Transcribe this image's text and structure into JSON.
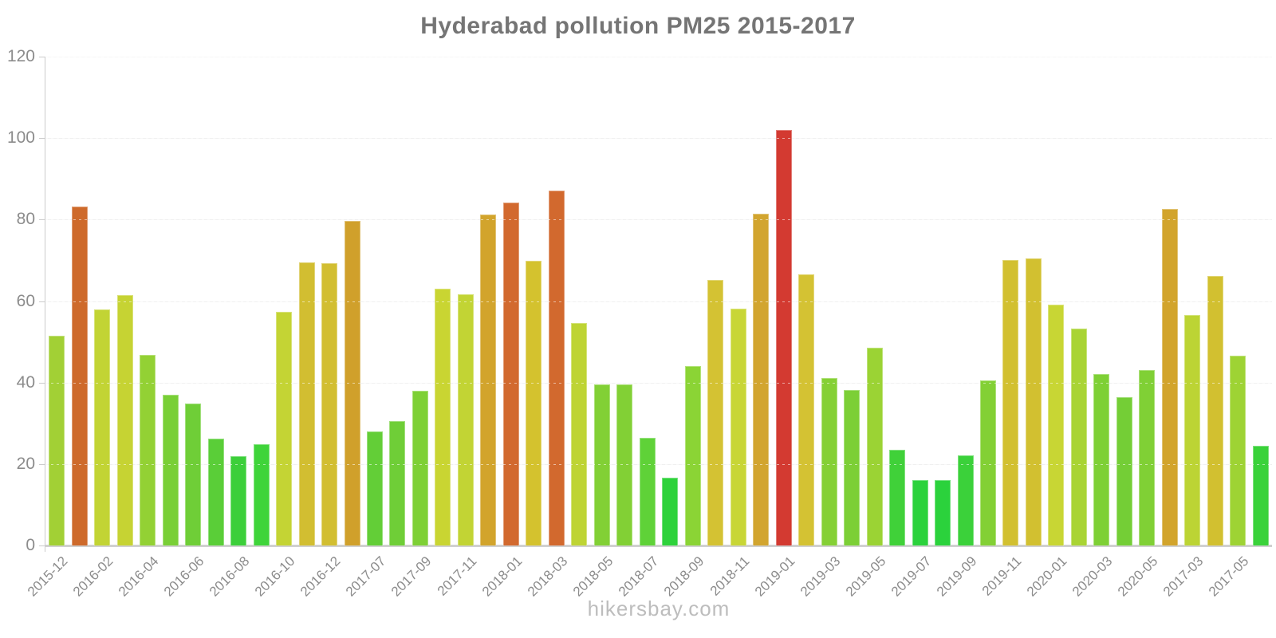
{
  "header": {
    "title": "Hyderabad pollution PM25 2015-2017"
  },
  "footer": {
    "watermark": "hikersbay.com"
  },
  "theme": {
    "background": "#ffffff",
    "title_color": "#757575",
    "tick_label_color": "#8c8c8c",
    "axis_color": "#cccccc",
    "grid_color": "#f0f0f0",
    "watermark_color": "#bdbdbd"
  },
  "chart_data": {
    "type": "bar",
    "title": "Hyderabad pollution PM25 2015-2017",
    "xlabel": "",
    "ylabel": "",
    "ylim": [
      0,
      120
    ],
    "y_ticks": [
      0,
      20,
      40,
      60,
      80,
      100,
      120
    ],
    "grid": true,
    "legend": "none",
    "x_label_interval": 2,
    "x_tick_labels": [
      "2015-12",
      "2016-02",
      "2016-04",
      "2016-06",
      "2016-08",
      "2016-10",
      "2016-12",
      "2017-07",
      "2017-09",
      "2017-11",
      "2018-01",
      "2018-03",
      "2018-05",
      "2018-07",
      "2018-09",
      "2018-11",
      "2019-01",
      "2019-03",
      "2019-05",
      "2019-07",
      "2019-09",
      "2019-11",
      "2020-01",
      "2020-03",
      "2020-05",
      "2017-03",
      "2017-05"
    ],
    "bars": [
      {
        "value": 51.5,
        "color": "#a2d035"
      },
      {
        "value": 83.2,
        "color": "#ce6a2b"
      },
      {
        "value": 58.0,
        "color": "#c2d434"
      },
      {
        "value": 61.5,
        "color": "#c6d333"
      },
      {
        "value": 46.8,
        "color": "#93d134"
      },
      {
        "value": 37.0,
        "color": "#79cf36"
      },
      {
        "value": 34.8,
        "color": "#6fce37"
      },
      {
        "value": 26.2,
        "color": "#5ace38"
      },
      {
        "value": 22.0,
        "color": "#3ccf3a"
      },
      {
        "value": 24.8,
        "color": "#3fd43a"
      },
      {
        "value": 57.4,
        "color": "#c4d434"
      },
      {
        "value": 69.5,
        "color": "#d2be31"
      },
      {
        "value": 69.3,
        "color": "#d2be31"
      },
      {
        "value": 79.6,
        "color": "#d0a02b"
      },
      {
        "value": 28.0,
        "color": "#63ce37"
      },
      {
        "value": 30.6,
        "color": "#6fce37"
      },
      {
        "value": 38.0,
        "color": "#7ed035"
      },
      {
        "value": 63.0,
        "color": "#c9d532"
      },
      {
        "value": 61.6,
        "color": "#c2d434"
      },
      {
        "value": 81.2,
        "color": "#d2a42c"
      },
      {
        "value": 84.2,
        "color": "#d2692e"
      },
      {
        "value": 69.8,
        "color": "#d4c22e"
      },
      {
        "value": 87.2,
        "color": "#d2692e"
      },
      {
        "value": 54.6,
        "color": "#bed434"
      },
      {
        "value": 39.6,
        "color": "#82d035"
      },
      {
        "value": 39.6,
        "color": "#82d035"
      },
      {
        "value": 26.4,
        "color": "#5fd238"
      },
      {
        "value": 16.6,
        "color": "#2ed23b"
      },
      {
        "value": 44.0,
        "color": "#8bd435"
      },
      {
        "value": 65.2,
        "color": "#d4c233"
      },
      {
        "value": 58.2,
        "color": "#c8d636"
      },
      {
        "value": 81.4,
        "color": "#d2a52f"
      },
      {
        "value": 102.0,
        "color": "#d33a31"
      },
      {
        "value": 66.6,
        "color": "#d4c233"
      },
      {
        "value": 41.2,
        "color": "#85d035"
      },
      {
        "value": 38.2,
        "color": "#7ccf36"
      },
      {
        "value": 48.6,
        "color": "#9bd334"
      },
      {
        "value": 23.4,
        "color": "#40d139"
      },
      {
        "value": 16.0,
        "color": "#2bd23c"
      },
      {
        "value": 16.0,
        "color": "#2bd23c"
      },
      {
        "value": 22.2,
        "color": "#3bd13a"
      },
      {
        "value": 40.6,
        "color": "#83d035"
      },
      {
        "value": 70.0,
        "color": "#d2c030"
      },
      {
        "value": 70.4,
        "color": "#d2c030"
      },
      {
        "value": 59.2,
        "color": "#c8d634"
      },
      {
        "value": 53.2,
        "color": "#a9d434"
      },
      {
        "value": 42.0,
        "color": "#7ed035"
      },
      {
        "value": 36.4,
        "color": "#74ce36"
      },
      {
        "value": 43.0,
        "color": "#80d035"
      },
      {
        "value": 82.6,
        "color": "#d2a42c"
      },
      {
        "value": 56.6,
        "color": "#bcd434"
      },
      {
        "value": 66.2,
        "color": "#d2c030"
      },
      {
        "value": 46.6,
        "color": "#9ed334"
      },
      {
        "value": 24.4,
        "color": "#3ad23a"
      }
    ]
  }
}
